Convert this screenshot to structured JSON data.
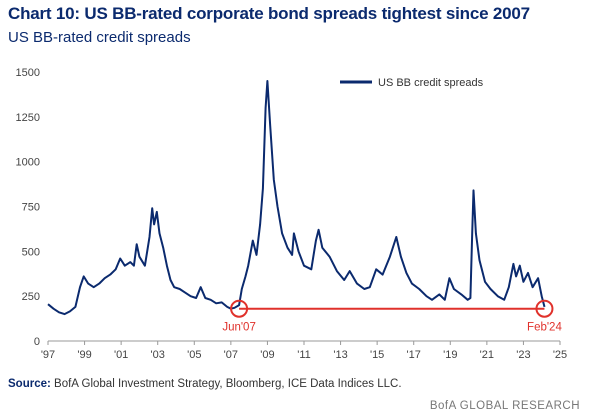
{
  "header": {
    "title": "Chart 10: US BB-rated corporate bond spreads tightest since 2007",
    "subtitle": "US BB-rated credit spreads"
  },
  "footer": {
    "source_label": "Source:",
    "source_text": " BofA Global Investment Strategy, Bloomberg, ICE Data Indices LLC.",
    "brand": "BofA GLOBAL RESEARCH"
  },
  "colors": {
    "series": "#0b2a6e",
    "highlight": "#e0312b",
    "axis": "#999999"
  },
  "chart_data": {
    "type": "line",
    "title": "US BB-rated credit spreads",
    "xlabel": "",
    "ylabel": "",
    "xlim": [
      1997,
      2025
    ],
    "ylim": [
      0,
      1500
    ],
    "yticks": [
      0,
      250,
      500,
      750,
      1000,
      1250,
      1500
    ],
    "xticks": [
      {
        "x": 1997,
        "label": "'97"
      },
      {
        "x": 1999,
        "label": "'99"
      },
      {
        "x": 2001,
        "label": "'01"
      },
      {
        "x": 2003,
        "label": "'03"
      },
      {
        "x": 2005,
        "label": "'05"
      },
      {
        "x": 2007,
        "label": "'07"
      },
      {
        "x": 2009,
        "label": "'09"
      },
      {
        "x": 2011,
        "label": "'11"
      },
      {
        "x": 2013,
        "label": "'13"
      },
      {
        "x": 2015,
        "label": "'15"
      },
      {
        "x": 2017,
        "label": "'17"
      },
      {
        "x": 2019,
        "label": "'19"
      },
      {
        "x": 2021,
        "label": "'21"
      },
      {
        "x": 2023,
        "label": "'23"
      },
      {
        "x": 2025,
        "label": "'25"
      }
    ],
    "legend": {
      "position": "top-right"
    },
    "series": [
      {
        "name": "US BB credit spreads",
        "points": [
          [
            1997.0,
            205
          ],
          [
            1997.3,
            180
          ],
          [
            1997.6,
            160
          ],
          [
            1997.9,
            150
          ],
          [
            1998.2,
            165
          ],
          [
            1998.5,
            190
          ],
          [
            1998.75,
            300
          ],
          [
            1998.95,
            360
          ],
          [
            1999.2,
            320
          ],
          [
            1999.5,
            300
          ],
          [
            1999.8,
            320
          ],
          [
            2000.1,
            350
          ],
          [
            2000.4,
            370
          ],
          [
            2000.7,
            400
          ],
          [
            2000.95,
            460
          ],
          [
            2001.2,
            420
          ],
          [
            2001.5,
            440
          ],
          [
            2001.7,
            420
          ],
          [
            2001.85,
            540
          ],
          [
            2002.0,
            470
          ],
          [
            2002.3,
            420
          ],
          [
            2002.55,
            580
          ],
          [
            2002.7,
            740
          ],
          [
            2002.8,
            650
          ],
          [
            2002.95,
            720
          ],
          [
            2003.1,
            600
          ],
          [
            2003.3,
            520
          ],
          [
            2003.5,
            420
          ],
          [
            2003.7,
            340
          ],
          [
            2003.9,
            300
          ],
          [
            2004.2,
            290
          ],
          [
            2004.5,
            270
          ],
          [
            2004.8,
            250
          ],
          [
            2005.1,
            240
          ],
          [
            2005.35,
            300
          ],
          [
            2005.6,
            240
          ],
          [
            2005.9,
            230
          ],
          [
            2006.2,
            210
          ],
          [
            2006.5,
            215
          ],
          [
            2006.8,
            190
          ],
          [
            2007.0,
            180
          ],
          [
            2007.2,
            185
          ],
          [
            2007.45,
            200
          ],
          [
            2007.6,
            290
          ],
          [
            2007.8,
            360
          ],
          [
            2007.95,
            420
          ],
          [
            2008.2,
            560
          ],
          [
            2008.4,
            480
          ],
          [
            2008.6,
            650
          ],
          [
            2008.75,
            850
          ],
          [
            2008.9,
            1300
          ],
          [
            2009.0,
            1450
          ],
          [
            2009.15,
            1200
          ],
          [
            2009.35,
            900
          ],
          [
            2009.55,
            750
          ],
          [
            2009.8,
            600
          ],
          [
            2010.1,
            520
          ],
          [
            2010.35,
            480
          ],
          [
            2010.45,
            600
          ],
          [
            2010.7,
            500
          ],
          [
            2011.0,
            420
          ],
          [
            2011.4,
            400
          ],
          [
            2011.65,
            560
          ],
          [
            2011.8,
            620
          ],
          [
            2012.0,
            520
          ],
          [
            2012.4,
            470
          ],
          [
            2012.8,
            390
          ],
          [
            2013.2,
            340
          ],
          [
            2013.5,
            390
          ],
          [
            2013.9,
            320
          ],
          [
            2014.3,
            290
          ],
          [
            2014.6,
            300
          ],
          [
            2014.95,
            400
          ],
          [
            2015.3,
            370
          ],
          [
            2015.7,
            470
          ],
          [
            2016.05,
            580
          ],
          [
            2016.3,
            470
          ],
          [
            2016.6,
            380
          ],
          [
            2016.9,
            320
          ],
          [
            2017.3,
            290
          ],
          [
            2017.7,
            250
          ],
          [
            2018.0,
            230
          ],
          [
            2018.4,
            260
          ],
          [
            2018.7,
            230
          ],
          [
            2018.95,
            350
          ],
          [
            2019.2,
            290
          ],
          [
            2019.6,
            260
          ],
          [
            2019.95,
            230
          ],
          [
            2020.1,
            240
          ],
          [
            2020.2,
            600
          ],
          [
            2020.27,
            840
          ],
          [
            2020.4,
            600
          ],
          [
            2020.6,
            450
          ],
          [
            2020.9,
            330
          ],
          [
            2021.2,
            290
          ],
          [
            2021.6,
            250
          ],
          [
            2021.95,
            230
          ],
          [
            2022.2,
            300
          ],
          [
            2022.45,
            430
          ],
          [
            2022.6,
            360
          ],
          [
            2022.8,
            420
          ],
          [
            2023.0,
            330
          ],
          [
            2023.25,
            380
          ],
          [
            2023.5,
            300
          ],
          [
            2023.8,
            350
          ],
          [
            2024.0,
            250
          ],
          [
            2024.15,
            190
          ]
        ]
      }
    ],
    "reference_line": {
      "from": {
        "x": 2007.45,
        "y": 180
      },
      "to": {
        "x": 2024.15,
        "y": 180
      }
    },
    "annotations": [
      {
        "label": "Jun'07",
        "x": 2007.45,
        "y": 180,
        "anchor": "below"
      },
      {
        "label": "Feb'24",
        "x": 2024.15,
        "y": 180,
        "anchor": "below"
      }
    ]
  }
}
